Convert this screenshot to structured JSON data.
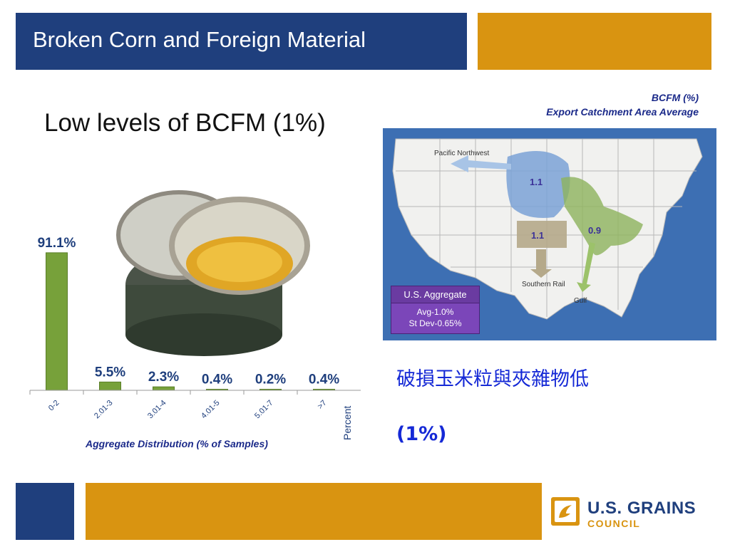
{
  "slide": {
    "title": "Broken Corn and Foreign Material",
    "headline": "Low levels of BCFM (1%)",
    "chinese_line1": "破損玉米粒與夾雜物低",
    "chinese_line2": "(1%)"
  },
  "map": {
    "caption_line1": "BCFM (%)",
    "caption_line2": "Export Catchment Area Average",
    "regions": [
      {
        "label": "Pacific Northwest",
        "value": "1.1",
        "color": "#7ba2d6"
      },
      {
        "label": "Southern Rail",
        "value": "1.1",
        "color": "#b5a98a"
      },
      {
        "label": "Gulf",
        "value": "0.9",
        "color": "#8db35c"
      }
    ],
    "aggregate": {
      "label": "U.S. Aggregate",
      "avg": "Avg-1.0%",
      "stdev": "St Dev-0.65%"
    },
    "colors": {
      "ocean": "#3d6fb3",
      "land": "#f1f1ef",
      "border": "#b7b7b7"
    }
  },
  "chart_data": {
    "type": "bar",
    "categories": [
      "0-2",
      "2.01-3",
      "3.01-4",
      "4.01-5",
      "5.01-7",
      ">7"
    ],
    "values": [
      91.1,
      5.5,
      2.3,
      0.4,
      0.2,
      0.4
    ],
    "data_labels": [
      "91.1%",
      "5.5%",
      "2.3%",
      "0.4%",
      "0.2%",
      "0.4%"
    ],
    "title": "",
    "xlabel": "Aggregate Distribution (% of Samples)",
    "ylabel": "Percent",
    "ylim": [
      0,
      100
    ],
    "grid": false,
    "bar_color": "#77a13a"
  },
  "logo": {
    "line1": "U.S. GRAINS",
    "line2": "COUNCIL",
    "colors": {
      "navy": "#1f3f7d",
      "gold": "#d99411"
    }
  },
  "theme": {
    "navy": "#1f3f7d",
    "gold": "#d99411",
    "caption_blue": "#1b2a8a",
    "chinese_blue": "#1529d6"
  }
}
